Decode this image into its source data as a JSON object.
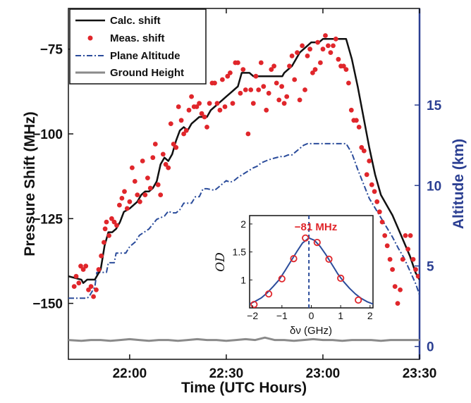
{
  "chart_data": [
    {
      "type": "line",
      "xlabel": "Time (UTC Hours)",
      "ylabel": "Pressure Shift (MHz)",
      "ylabel_right": "Altitude (km)",
      "x_unit": "UTC hours",
      "xlim": [
        21.683,
        23.5
      ],
      "ylim": [
        -166.5,
        -63
      ],
      "ylim_right": [
        -0.8,
        21
      ],
      "x_ticks": [
        22.0,
        22.5,
        23.0,
        23.5
      ],
      "x_tick_labels": [
        "22:00",
        "22:30",
        "23:00",
        "23:30"
      ],
      "y_ticks": [
        -150,
        -125,
        -100,
        -75
      ],
      "y_tick_labels": [
        "−150",
        "−125",
        "−100",
        "−75"
      ],
      "y_ticks_right": [
        0,
        5,
        10,
        15
      ],
      "y_tick_labels_right": [
        "0",
        "5",
        "10",
        "15"
      ],
      "legend_position": "top-left",
      "legend": [
        {
          "label": "Calc. shift",
          "color": "#111111",
          "style": "solid"
        },
        {
          "label": "Meas. shift",
          "color": "#e0262b",
          "style": "dots"
        },
        {
          "label": "Plane Altitude",
          "color": "#2b4c9b",
          "style": "dash-dot"
        },
        {
          "label": "Ground Height",
          "color": "#8a8a8a",
          "style": "solid"
        }
      ],
      "series": [
        {
          "name": "Calc. shift",
          "axis": "left",
          "color": "#111111",
          "x": [
            21.683,
            21.75,
            21.76,
            21.78,
            21.8,
            21.82,
            21.85,
            21.87,
            21.89,
            21.91,
            21.93,
            21.95,
            21.97,
            22.0,
            22.02,
            22.04,
            22.06,
            22.08,
            22.1,
            22.12,
            22.14,
            22.16,
            22.18,
            22.2,
            22.22,
            22.24,
            22.26,
            22.28,
            22.3,
            22.32,
            22.34,
            22.36,
            22.38,
            22.4,
            22.42,
            22.44,
            22.46,
            22.48,
            22.5,
            22.52,
            22.54,
            22.56,
            22.58,
            22.6,
            22.62,
            22.64,
            22.66,
            22.68,
            22.7,
            22.73,
            22.76,
            22.79,
            22.8,
            22.82,
            22.84,
            22.86,
            22.88,
            22.9,
            22.92,
            22.94,
            22.96,
            22.98,
            23.0,
            23.03,
            23.06,
            23.09,
            23.11,
            23.12,
            23.15,
            23.18,
            23.21,
            23.24,
            23.27,
            23.3,
            23.33,
            23.36,
            23.39,
            23.42,
            23.45,
            23.48,
            23.5
          ],
          "y": [
            -142,
            -143,
            -144,
            -143,
            -143,
            -143,
            -140,
            -133,
            -129,
            -129,
            -128,
            -126,
            -123,
            -122,
            -121,
            -120,
            -118,
            -117,
            -117,
            -116,
            -114,
            -109,
            -107,
            -108,
            -106,
            -102,
            -99,
            -98,
            -99,
            -97,
            -96,
            -95,
            -95,
            -95,
            -93,
            -92,
            -91,
            -90,
            -89,
            -88,
            -87,
            -86,
            -82,
            -82,
            -82,
            -83,
            -83,
            -83,
            -83,
            -83,
            -83,
            -83,
            -82,
            -81,
            -80,
            -78,
            -76,
            -75,
            -74,
            -73,
            -73,
            -73,
            -72,
            -72,
            -72,
            -72,
            -72,
            -72,
            -78,
            -86,
            -95,
            -104,
            -112,
            -118,
            -121,
            -124,
            -128,
            -132,
            -136,
            -141,
            -143
          ]
        },
        {
          "name": "Meas. shift",
          "axis": "left",
          "color": "#e0262b",
          "x": [
            21.713,
            21.723,
            21.737,
            21.747,
            21.76,
            21.773,
            21.787,
            21.8,
            21.813,
            21.827,
            21.84,
            21.853,
            21.867,
            21.873,
            21.88,
            21.893,
            21.907,
            21.92,
            21.933,
            21.947,
            21.96,
            21.973,
            21.987,
            22.0,
            22.013,
            22.027,
            22.04,
            22.053,
            22.067,
            22.08,
            22.093,
            22.107,
            22.12,
            22.133,
            22.147,
            22.16,
            22.173,
            22.187,
            22.2,
            22.213,
            22.227,
            22.24,
            22.253,
            22.267,
            22.28,
            22.293,
            22.307,
            22.32,
            22.333,
            22.347,
            22.36,
            22.373,
            22.387,
            22.4,
            22.413,
            22.427,
            22.44,
            22.453,
            22.467,
            22.48,
            22.493,
            22.507,
            22.52,
            22.533,
            22.547,
            22.56,
            22.573,
            22.587,
            22.6,
            22.613,
            22.627,
            22.64,
            22.653,
            22.667,
            22.68,
            22.693,
            22.707,
            22.72,
            22.733,
            22.747,
            22.76,
            22.773,
            22.787,
            22.8,
            22.813,
            22.827,
            22.84,
            22.853,
            22.867,
            22.88,
            22.893,
            22.907,
            22.92,
            22.933,
            22.947,
            22.96,
            22.973,
            22.987,
            23.0,
            23.013,
            23.027,
            23.04,
            23.053,
            23.067,
            23.08,
            23.093,
            23.107,
            23.12,
            23.133,
            23.147,
            23.16,
            23.173,
            23.187,
            23.2,
            23.213,
            23.227,
            23.24,
            23.253,
            23.267,
            23.28,
            23.293,
            23.307,
            23.32,
            23.333,
            23.347,
            23.36,
            23.373,
            23.387,
            23.4,
            23.413,
            23.427,
            23.44,
            23.453,
            23.467,
            23.48,
            23.493
          ],
          "y": [
            -145,
            -142,
            -144,
            -139,
            -140,
            -139,
            -146,
            -145,
            -148,
            -146,
            -140,
            -136,
            -132,
            -128,
            -126,
            -130,
            -125,
            -126,
            -127,
            -121,
            -119,
            -117,
            -122,
            -120,
            -110,
            -114,
            -118,
            -120,
            -108,
            -118,
            -113,
            -116,
            -107,
            -103,
            -115,
            -118,
            -106,
            -109,
            -110,
            -97,
            -103,
            -104,
            -92,
            -96,
            -100,
            -99,
            -93,
            -89,
            -92,
            -92,
            -91,
            -94,
            -95,
            -98,
            -91,
            -85,
            -85,
            -91,
            -93,
            -84,
            -92,
            -83,
            -82,
            -91,
            -79,
            -79,
            -88,
            -81,
            -87,
            -100,
            -87,
            -91,
            -83,
            -87,
            -79,
            -86,
            -93,
            -88,
            -81,
            -80,
            -85,
            -90,
            -86,
            -91,
            -89,
            -80,
            -77,
            -84,
            -76,
            -90,
            -74,
            -87,
            -77,
            -75,
            -82,
            -81,
            -73,
            -79,
            -75,
            -71,
            -74,
            -76,
            -74,
            -72,
            -78,
            -80,
            -80,
            -81,
            -85,
            -93,
            -96,
            -96,
            -98,
            -104,
            -105,
            -112,
            -108,
            -115,
            -117,
            -120,
            -123,
            -126,
            -130,
            -133,
            -137,
            -140,
            -145,
            -150,
            -146,
            -137,
            -130,
            -134,
            -130,
            -137,
            -140,
            -142
          ]
        },
        {
          "name": "Plane Altitude",
          "axis": "right",
          "color": "#2b4c9b",
          "x": [
            21.683,
            21.78,
            21.79,
            21.82,
            21.83,
            21.88,
            21.89,
            21.92,
            21.93,
            21.98,
            22.0,
            22.03,
            22.05,
            22.1,
            22.12,
            22.14,
            22.18,
            22.2,
            22.22,
            22.24,
            22.26,
            22.28,
            22.32,
            22.34,
            22.36,
            22.38,
            22.4,
            22.44,
            22.46,
            22.5,
            22.52,
            22.54,
            22.56,
            22.6,
            22.64,
            22.66,
            22.68,
            22.7,
            22.72,
            22.75,
            22.78,
            22.8,
            22.82,
            22.84,
            22.86,
            22.88,
            22.9,
            22.92,
            22.95,
            23.1,
            23.12,
            23.15,
            23.18,
            23.21,
            23.24,
            23.27,
            23.3,
            23.33,
            23.36,
            23.39,
            23.42,
            23.45,
            23.48,
            23.5
          ],
          "y": [
            3.0,
            3.0,
            3.1,
            3.7,
            4.6,
            4.6,
            5.2,
            5.2,
            5.8,
            5.8,
            6.2,
            6.5,
            6.9,
            7.3,
            7.6,
            7.9,
            8.1,
            8.4,
            8.3,
            8.3,
            8.5,
            8.9,
            8.9,
            9.3,
            9.3,
            9.8,
            9.8,
            9.7,
            9.9,
            10.3,
            10.2,
            10.3,
            10.5,
            10.8,
            11.1,
            11.2,
            11.4,
            11.5,
            11.6,
            11.7,
            11.8,
            11.8,
            11.9,
            11.9,
            12.1,
            12.3,
            12.5,
            12.6,
            12.6,
            12.6,
            12.6,
            12.0,
            11.0,
            10.1,
            9.2,
            8.6,
            8.0,
            7.4,
            6.8,
            6.1,
            5.5,
            4.7,
            3.9,
            3.2
          ]
        },
        {
          "name": "Ground Height",
          "axis": "right",
          "color": "#8a8a8a",
          "x": [
            21.683,
            21.75,
            21.8,
            21.85,
            21.9,
            21.95,
            22.0,
            22.05,
            22.1,
            22.15,
            22.2,
            22.25,
            22.3,
            22.35,
            22.4,
            22.45,
            22.5,
            22.55,
            22.6,
            22.65,
            22.7,
            22.75,
            22.8,
            22.85,
            22.9,
            22.95,
            23.0,
            23.05,
            23.1,
            23.15,
            23.2,
            23.25,
            23.3,
            23.35,
            23.4,
            23.45,
            23.5
          ],
          "y": [
            0.4,
            0.35,
            0.4,
            0.4,
            0.35,
            0.4,
            0.45,
            0.4,
            0.35,
            0.4,
            0.4,
            0.35,
            0.4,
            0.45,
            0.4,
            0.4,
            0.35,
            0.4,
            0.45,
            0.4,
            0.55,
            0.4,
            0.4,
            0.35,
            0.4,
            0.45,
            0.4,
            0.4,
            0.35,
            0.4,
            0.4,
            0.4,
            0.35,
            0.4,
            0.4,
            0.4,
            0.4
          ]
        }
      ]
    },
    {
      "type": "line",
      "role": "inset",
      "title": "−81 MHz",
      "xlabel": "δν (GHz)",
      "ylabel": "OD",
      "xlim": [
        -2.1,
        2.1
      ],
      "ylim": [
        0.5,
        2.15
      ],
      "x_ticks": [
        -2,
        -1,
        0,
        1,
        2
      ],
      "x_tick_labels": [
        "−2",
        "−1",
        "0",
        "1",
        "2"
      ],
      "y_ticks": [
        1,
        1.5,
        2
      ],
      "y_tick_labels": [
        "1",
        "1.5",
        "2"
      ],
      "marker_line_x": -0.081,
      "series": [
        {
          "name": "fit",
          "color": "#2b4c9b",
          "x": [
            -2.1,
            -1.9,
            -1.7,
            -1.5,
            -1.3,
            -1.1,
            -0.9,
            -0.7,
            -0.5,
            -0.3,
            -0.081,
            0.1,
            0.3,
            0.5,
            0.7,
            0.9,
            1.1,
            1.3,
            1.5,
            1.7,
            1.9,
            2.1
          ],
          "y": [
            0.57,
            0.62,
            0.68,
            0.77,
            0.88,
            1.0,
            1.16,
            1.33,
            1.5,
            1.66,
            1.75,
            1.71,
            1.6,
            1.45,
            1.28,
            1.11,
            0.97,
            0.85,
            0.75,
            0.67,
            0.61,
            0.57
          ]
        },
        {
          "name": "data",
          "color": "#e0262b",
          "x": [
            -1.95,
            -1.45,
            -1.0,
            -0.6,
            -0.2,
            0.2,
            0.6,
            1.0,
            1.6
          ],
          "y": [
            0.56,
            0.75,
            1.02,
            1.38,
            1.75,
            1.67,
            1.37,
            1.03,
            0.64
          ]
        }
      ]
    }
  ]
}
